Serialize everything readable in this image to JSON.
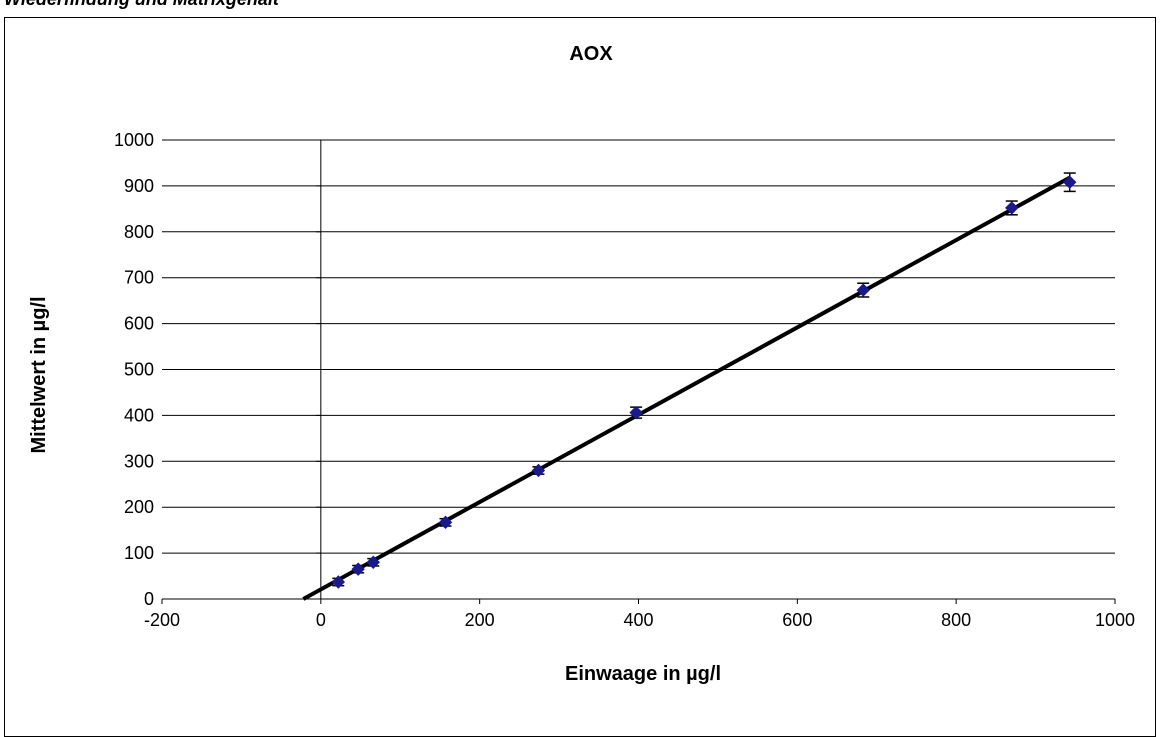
{
  "page": {
    "heading": "Wiederfindung und Matrixgehalt"
  },
  "chart_data": {
    "type": "scatter",
    "title": "AOX",
    "xlabel": "Einwaage in µg/l",
    "ylabel": "Mittelwert in µg/l",
    "xlim": [
      -200,
      1000
    ],
    "ylim": [
      0,
      1000
    ],
    "x_ticks": [
      -200,
      0,
      200,
      400,
      600,
      800,
      1000
    ],
    "y_ticks": [
      0,
      100,
      200,
      300,
      400,
      500,
      600,
      700,
      800,
      900,
      1000
    ],
    "x_tick_labels": [
      "-200",
      "0",
      "200",
      "400",
      "600",
      "800",
      "1000"
    ],
    "y_tick_labels": [
      "0",
      "100",
      "200",
      "300",
      "400",
      "500",
      "600",
      "700",
      "800",
      "900",
      "1000"
    ],
    "grid": {
      "horizontal": true,
      "vertical": false
    },
    "series": [
      {
        "marker": "diamond",
        "color": "#1a1a8c",
        "points": [
          {
            "x": 22,
            "y": 37,
            "err": 8
          },
          {
            "x": 47,
            "y": 65,
            "err": 8
          },
          {
            "x": 66,
            "y": 80,
            "err": 8
          },
          {
            "x": 157,
            "y": 167,
            "err": 8
          },
          {
            "x": 274,
            "y": 280,
            "err": 8
          },
          {
            "x": 397,
            "y": 406,
            "err": 12
          },
          {
            "x": 683,
            "y": 673,
            "err": 15
          },
          {
            "x": 870,
            "y": 852,
            "err": 15
          },
          {
            "x": 943,
            "y": 908,
            "err": 20
          }
        ]
      }
    ],
    "trendline": {
      "x": [
        -22,
        943
      ],
      "y": [
        0,
        918
      ],
      "color": "#000000"
    }
  }
}
